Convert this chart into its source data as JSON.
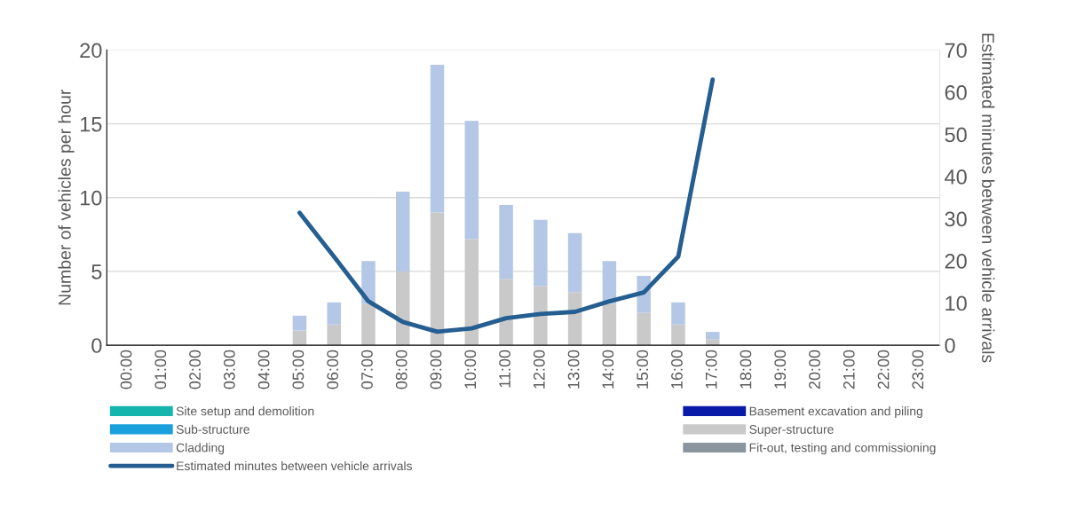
{
  "chart_data": {
    "type": "bar",
    "stacked": true,
    "categories": [
      "00:00",
      "01:00",
      "02:00",
      "03:00",
      "04:00",
      "05:00",
      "06:00",
      "07:00",
      "08:00",
      "09:00",
      "10:00",
      "11:00",
      "12:00",
      "13:00",
      "14:00",
      "15:00",
      "16:00",
      "17:00",
      "18:00",
      "19:00",
      "20:00",
      "21:00",
      "22:00",
      "23:00"
    ],
    "ylabel": "Number of vehicles per hour",
    "y2label": "Estimated minutes between vehicle arrivals",
    "ylim": [
      0,
      20
    ],
    "yticks": [
      0,
      5,
      10,
      15,
      20
    ],
    "y2lim": [
      0,
      70
    ],
    "y2ticks": [
      0,
      10,
      20,
      30,
      40,
      50,
      60,
      70
    ],
    "grid": "y",
    "legend": "bottom",
    "series": [
      {
        "name": "Site setup and demolition",
        "color": "#14b5ad",
        "values": [
          null,
          null,
          null,
          null,
          null,
          null,
          null,
          null,
          null,
          null,
          null,
          null,
          null,
          null,
          null,
          null,
          null,
          null,
          null,
          null,
          null,
          null,
          null,
          null
        ]
      },
      {
        "name": "Basement excavation and piling",
        "color": "#0a1aa8",
        "values": [
          null,
          null,
          null,
          null,
          null,
          null,
          null,
          null,
          null,
          null,
          null,
          null,
          null,
          null,
          null,
          null,
          null,
          null,
          null,
          null,
          null,
          null,
          null,
          null
        ]
      },
      {
        "name": "Sub-structure",
        "color": "#1aa0dc",
        "values": [
          null,
          null,
          null,
          null,
          null,
          null,
          null,
          null,
          null,
          null,
          null,
          null,
          null,
          null,
          null,
          null,
          null,
          null,
          null,
          null,
          null,
          null,
          null,
          null
        ]
      },
      {
        "name": "Super-structure",
        "color": "#c9c9c9",
        "values": [
          null,
          null,
          null,
          null,
          null,
          1.0,
          1.4,
          2.8,
          5.0,
          9.0,
          7.2,
          4.5,
          4.0,
          3.6,
          2.8,
          2.2,
          1.4,
          0.4,
          null,
          null,
          null,
          null,
          null,
          null
        ]
      },
      {
        "name": "Cladding",
        "color": "#b4c7e7",
        "values": [
          null,
          null,
          null,
          null,
          null,
          1.0,
          1.5,
          2.9,
          5.4,
          10.0,
          8.0,
          5.0,
          4.5,
          4.0,
          2.9,
          2.5,
          1.5,
          0.5,
          null,
          null,
          null,
          null,
          null,
          null
        ]
      },
      {
        "name": "Fit-out, testing and commissioning",
        "color": "#8a959f",
        "values": [
          null,
          null,
          null,
          null,
          null,
          null,
          null,
          null,
          null,
          null,
          null,
          null,
          null,
          null,
          null,
          null,
          null,
          null,
          null,
          null,
          null,
          null,
          null,
          null
        ]
      },
      {
        "name": "Estimated minutes between vehicle arrivals",
        "type": "line",
        "axis": "y2",
        "color": "#255e91",
        "values": [
          null,
          null,
          null,
          null,
          null,
          31.4,
          21.0,
          10.4,
          5.5,
          3.2,
          4.0,
          6.4,
          7.4,
          7.9,
          10.4,
          12.5,
          21.0,
          63.0,
          null,
          null,
          null,
          null,
          null,
          null
        ]
      }
    ]
  }
}
